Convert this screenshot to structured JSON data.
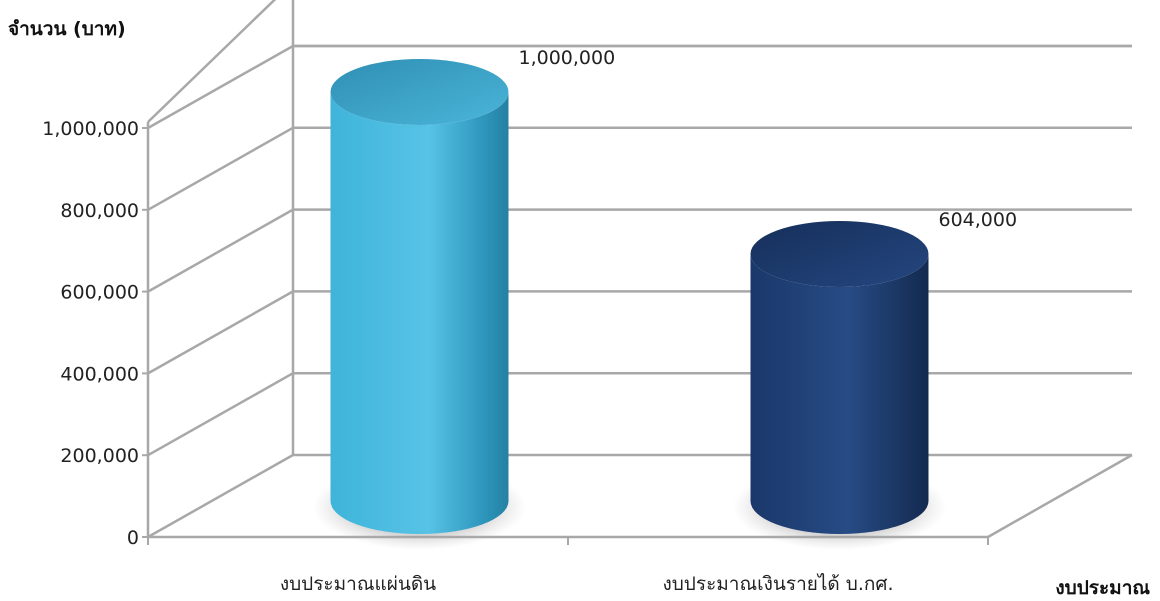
{
  "chart_data": {
    "type": "bar",
    "style": "3d-cylinder",
    "ylabel": "จำนวน (บาท)",
    "xlabel": "งบประมาณ",
    "categories": [
      "งบประมาณแผ่นดิน",
      "งบประมาณเงินรายได้ บ.กศ."
    ],
    "values": [
      1000000,
      604000
    ],
    "value_labels": [
      "1,000,000",
      "604,000"
    ],
    "colors": [
      "#3aaed4",
      "#1f3f74"
    ],
    "ylim": [
      0,
      1000000
    ],
    "yticks": [
      0,
      200000,
      400000,
      600000,
      800000,
      1000000
    ],
    "ytick_labels": [
      "0",
      "200,000",
      "400,000",
      "600,000",
      "800,000",
      "1,000,000"
    ],
    "grid": true,
    "legend": "none"
  }
}
